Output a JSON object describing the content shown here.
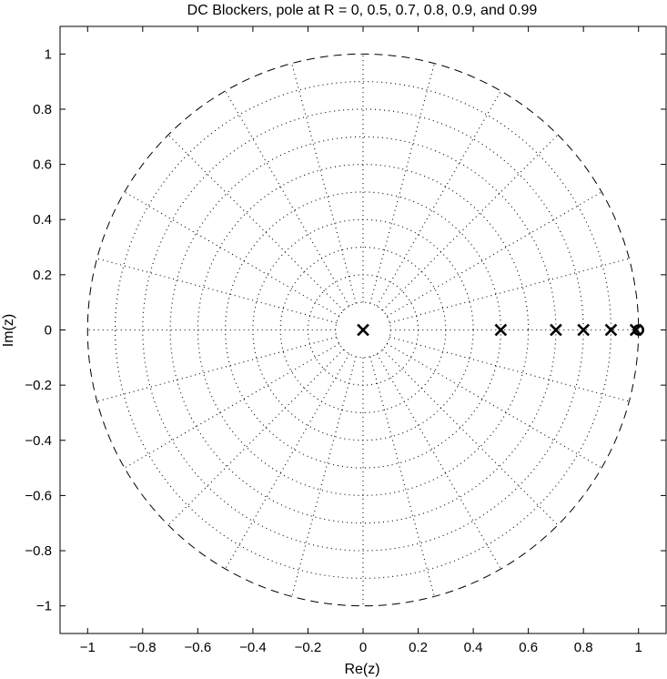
{
  "chart_data": {
    "type": "scatter",
    "title": "DC Blockers, pole at R = 0, 0.5, 0.7, 0.8, 0.9, and 0.99",
    "xlabel": "Re(z)",
    "ylabel": "Im(z)",
    "xlim": [
      -1.1,
      1.1
    ],
    "ylim": [
      -1.1,
      1.1
    ],
    "xticks": [
      -1,
      -0.8,
      -0.6,
      -0.4,
      -0.2,
      0,
      0.2,
      0.4,
      0.6,
      0.8,
      1
    ],
    "yticks": [
      -1,
      -0.8,
      -0.6,
      -0.4,
      -0.2,
      0,
      0.2,
      0.4,
      0.6,
      0.8,
      1
    ],
    "xtick_labels": [
      "−1",
      "−0.8",
      "−0.6",
      "−0.4",
      "−0.2",
      "0",
      "0.2",
      "0.4",
      "0.6",
      "0.8",
      "1"
    ],
    "ytick_labels": [
      "−1",
      "−0.8",
      "−0.6",
      "−0.4",
      "−0.2",
      "0",
      "0.2",
      "0.4",
      "0.6",
      "0.8",
      "1"
    ],
    "unit_circle": {
      "radius": 1,
      "style": "dashed"
    },
    "polar_grid": {
      "style": "dotted",
      "radii": [
        0.1,
        0.2,
        0.3,
        0.4,
        0.5,
        0.6,
        0.7,
        0.8,
        0.9
      ],
      "spoke_count": 24,
      "spoke_inner_radius": 0.1,
      "spoke_outer_radius": 1.0
    },
    "grid": false,
    "series": [
      {
        "marker": "x",
        "points": [
          [
            0,
            0
          ],
          [
            0.5,
            0
          ],
          [
            0.7,
            0
          ],
          [
            0.8,
            0
          ],
          [
            0.9,
            0
          ],
          [
            0.99,
            0
          ]
        ]
      },
      {
        "marker": "o",
        "points": [
          [
            1,
            0
          ]
        ]
      }
    ],
    "color": "#000000"
  }
}
